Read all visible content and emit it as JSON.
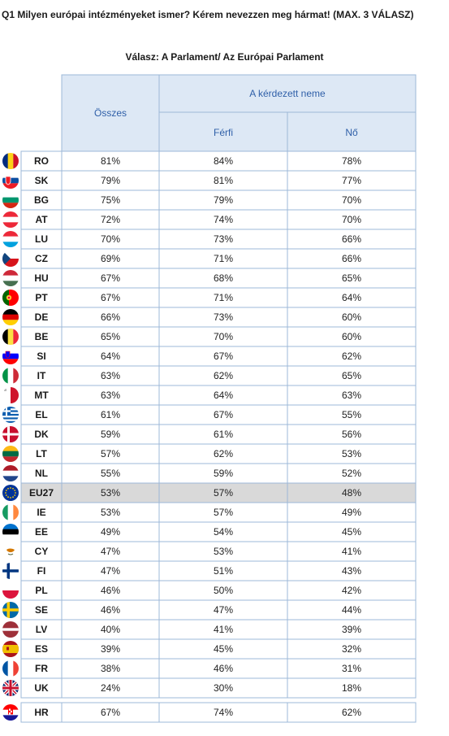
{
  "title": "Q1 Milyen európai intézményeket ismer? Kérem nevezzen meg hármat! (MAX. 3 VÁLASZ)",
  "subtitle": "Válasz: A Parlament/ Az Európai Parlament",
  "header": {
    "total": "Összes",
    "gender_group": "A kérdezett neme",
    "male": "Férfi",
    "female": "Nő"
  },
  "colors": {
    "border": "#9db8d8",
    "header_bg": "#dde8f5",
    "header_text": "#2f5fa8",
    "eu_row_bg": "#d9d9d9"
  },
  "chart_data": {
    "type": "table",
    "columns": [
      "Összes",
      "Férfi",
      "Nő"
    ],
    "rows": [
      {
        "code": "RO",
        "flag": "romania-flag-icon",
        "values": [
          "81%",
          "84%",
          "78%"
        ]
      },
      {
        "code": "SK",
        "flag": "slovakia-flag-icon",
        "values": [
          "79%",
          "81%",
          "77%"
        ]
      },
      {
        "code": "BG",
        "flag": "bulgaria-flag-icon",
        "values": [
          "75%",
          "79%",
          "70%"
        ]
      },
      {
        "code": "AT",
        "flag": "austria-flag-icon",
        "values": [
          "72%",
          "74%",
          "70%"
        ]
      },
      {
        "code": "LU",
        "flag": "luxembourg-flag-icon",
        "values": [
          "70%",
          "73%",
          "66%"
        ]
      },
      {
        "code": "CZ",
        "flag": "czech-flag-icon",
        "values": [
          "69%",
          "71%",
          "66%"
        ]
      },
      {
        "code": "HU",
        "flag": "hungary-flag-icon",
        "values": [
          "67%",
          "68%",
          "65%"
        ]
      },
      {
        "code": "PT",
        "flag": "portugal-flag-icon",
        "values": [
          "67%",
          "71%",
          "64%"
        ]
      },
      {
        "code": "DE",
        "flag": "germany-flag-icon",
        "values": [
          "66%",
          "73%",
          "60%"
        ]
      },
      {
        "code": "BE",
        "flag": "belgium-flag-icon",
        "values": [
          "65%",
          "70%",
          "60%"
        ]
      },
      {
        "code": "SI",
        "flag": "slovenia-flag-icon",
        "values": [
          "64%",
          "67%",
          "62%"
        ]
      },
      {
        "code": "IT",
        "flag": "italy-flag-icon",
        "values": [
          "63%",
          "62%",
          "65%"
        ]
      },
      {
        "code": "MT",
        "flag": "malta-flag-icon",
        "values": [
          "63%",
          "64%",
          "63%"
        ]
      },
      {
        "code": "EL",
        "flag": "greece-flag-icon",
        "values": [
          "61%",
          "67%",
          "55%"
        ]
      },
      {
        "code": "DK",
        "flag": "denmark-flag-icon",
        "values": [
          "59%",
          "61%",
          "56%"
        ]
      },
      {
        "code": "LT",
        "flag": "lithuania-flag-icon",
        "values": [
          "57%",
          "62%",
          "53%"
        ]
      },
      {
        "code": "NL",
        "flag": "netherlands-flag-icon",
        "values": [
          "55%",
          "59%",
          "52%"
        ]
      },
      {
        "code": "EU27",
        "flag": "eu-flag-icon",
        "values": [
          "53%",
          "57%",
          "48%"
        ],
        "highlight": true
      },
      {
        "code": "IE",
        "flag": "ireland-flag-icon",
        "values": [
          "53%",
          "57%",
          "49%"
        ]
      },
      {
        "code": "EE",
        "flag": "estonia-flag-icon",
        "values": [
          "49%",
          "54%",
          "45%"
        ]
      },
      {
        "code": "CY",
        "flag": "cyprus-flag-icon",
        "values": [
          "47%",
          "53%",
          "41%"
        ]
      },
      {
        "code": "FI",
        "flag": "finland-flag-icon",
        "values": [
          "47%",
          "51%",
          "43%"
        ]
      },
      {
        "code": "PL",
        "flag": "poland-flag-icon",
        "values": [
          "46%",
          "50%",
          "42%"
        ]
      },
      {
        "code": "SE",
        "flag": "sweden-flag-icon",
        "values": [
          "46%",
          "47%",
          "44%"
        ]
      },
      {
        "code": "LV",
        "flag": "latvia-flag-icon",
        "values": [
          "40%",
          "41%",
          "39%"
        ]
      },
      {
        "code": "ES",
        "flag": "spain-flag-icon",
        "values": [
          "39%",
          "45%",
          "32%"
        ]
      },
      {
        "code": "FR",
        "flag": "france-flag-icon",
        "values": [
          "38%",
          "46%",
          "31%"
        ]
      },
      {
        "code": "UK",
        "flag": "uk-flag-icon",
        "values": [
          "24%",
          "30%",
          "18%"
        ]
      }
    ],
    "extra_rows": [
      {
        "code": "HR",
        "flag": "croatia-flag-icon",
        "values": [
          "67%",
          "74%",
          "62%"
        ]
      }
    ]
  }
}
